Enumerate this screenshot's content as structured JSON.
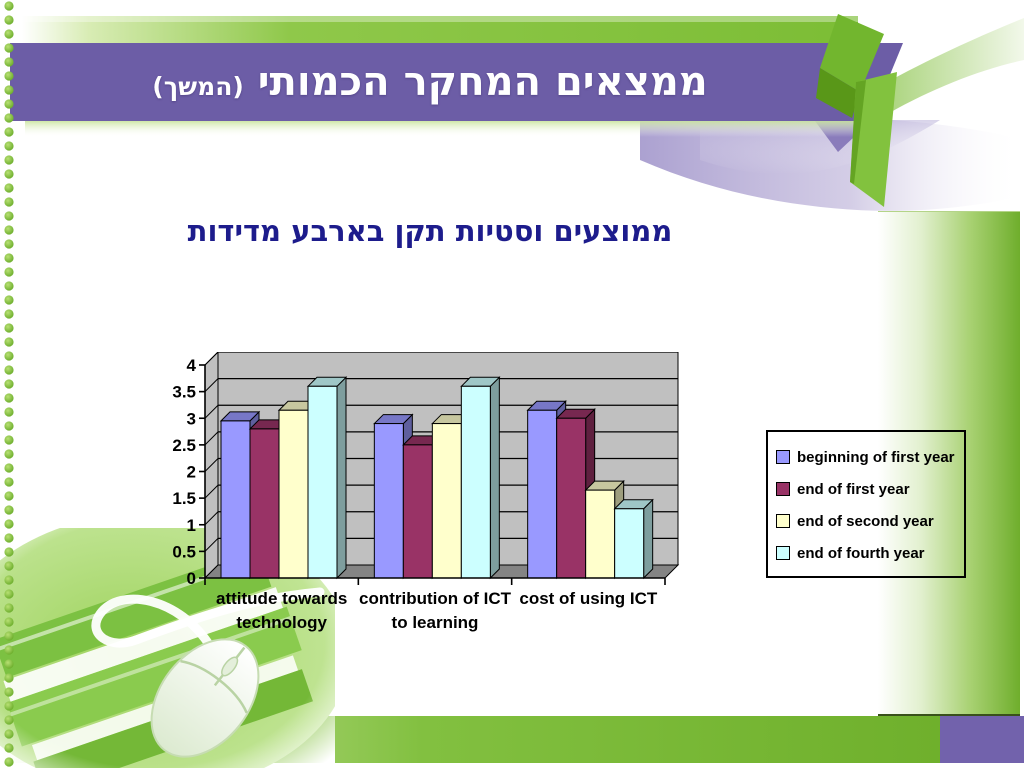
{
  "slide": {
    "title": "ממצאים המחקר הכמותי",
    "title_suffix": "(המשך)",
    "subtitle": "ממוצעים וסטיות תקן בארבע מדידות"
  },
  "chart_data": {
    "type": "bar",
    "projection": "3d-column",
    "title": "",
    "xlabel": "",
    "ylabel": "",
    "categories": [
      "attitude towards technology",
      "contribution of ICT to learning",
      "cost of using ICT"
    ],
    "category_display": [
      [
        "attitude towards",
        "technology"
      ],
      [
        "contribution of ICT",
        "to learning"
      ],
      [
        "cost of using ICT"
      ]
    ],
    "series": [
      {
        "name": "beginning of first year",
        "color": "#9999FF",
        "values": [
          2.95,
          2.9,
          3.15
        ]
      },
      {
        "name": "end of first year",
        "color": "#993366",
        "values": [
          2.8,
          2.5,
          3.0
        ]
      },
      {
        "name": "end of second year",
        "color": "#FFFFCC",
        "values": [
          3.15,
          2.9,
          1.65
        ]
      },
      {
        "name": "end of fourth year",
        "color": "#CCFFFF",
        "values": [
          3.6,
          3.6,
          1.3
        ]
      }
    ],
    "ylim": [
      0,
      4
    ],
    "ytick_step": 0.5,
    "ytick_labels": [
      "0",
      "0.5",
      "1",
      "1.5",
      "2",
      "2.5",
      "3",
      "3.5",
      "4"
    ],
    "grid": true,
    "legend_position": "right",
    "wall_color": "#c0c0c0",
    "floor_color": "#848484"
  },
  "theme": {
    "banner_purple": "#6c5da6",
    "ribbon_green": "#7cbd35",
    "accent_green": "#72b62e",
    "bottom_purple": "#7262ac",
    "subtitle_navy": "#1d1c8c",
    "dot_green": "#6cae28"
  }
}
